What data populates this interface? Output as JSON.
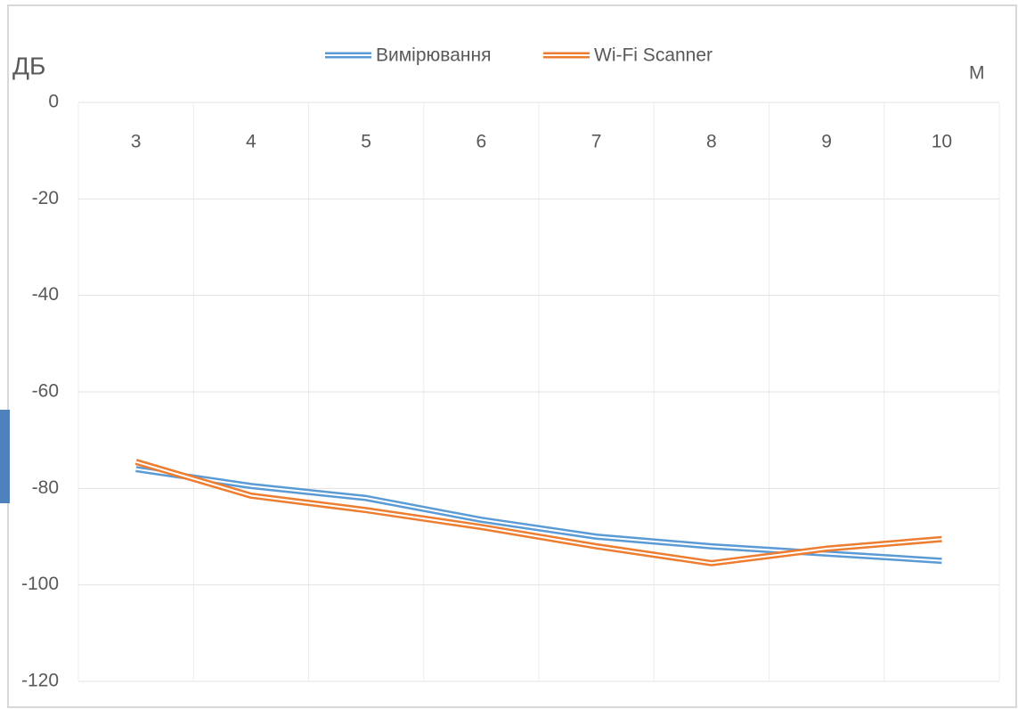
{
  "chart_data": {
    "type": "line",
    "y_label": "ДБ",
    "x_label": "М",
    "categories": [
      "3",
      "4",
      "5",
      "6",
      "7",
      "8",
      "9",
      "10"
    ],
    "series": [
      {
        "name": "Вимірювання",
        "color": "#5b9bd5",
        "values": [
          -76,
          -79.5,
          -82,
          -86.5,
          -90,
          -92,
          -93.5,
          -95
        ]
      },
      {
        "name": "Wi-Fi Scanner",
        "color": "#ed7d31",
        "values": [
          -74.5,
          -81.5,
          -84.5,
          -88,
          -92,
          -95.5,
          -92.5,
          -90.5
        ]
      }
    ],
    "ylim": [
      -120,
      0
    ],
    "yticks": [
      0,
      -20,
      -40,
      -60,
      -80,
      -100,
      -120
    ],
    "grid": true
  }
}
